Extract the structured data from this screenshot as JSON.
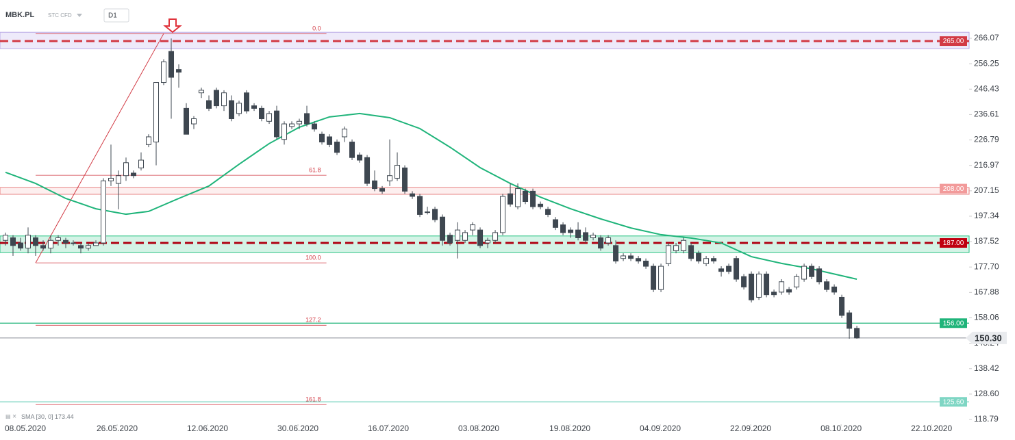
{
  "header": {
    "symbol": "MBK.PL",
    "market": "STC CFD",
    "interval": "D1"
  },
  "chart_data": {
    "type": "candlestick",
    "ylim": [
      116.94,
      269.24
    ],
    "yticks": [
      266.07,
      256.25,
      246.43,
      236.61,
      226.79,
      216.97,
      207.15,
      197.34,
      187.52,
      {
        "value": 177.7,
        "label": "177.70"
      },
      167.88,
      158.06,
      148.24,
      138.42,
      {
        "value": 128.6,
        "label": "128.60"
      },
      118.79
    ],
    "xlim": [
      -0.727,
      127.9
    ],
    "xticks": [
      {
        "value": 2.64,
        "label": "08.05.2020"
      },
      {
        "value": 14.82,
        "label": "26.05.2020"
      },
      {
        "value": 26.82,
        "label": "12.06.2020"
      },
      {
        "value": 38.82,
        "label": "30.06.2020"
      },
      {
        "value": 50.82,
        "label": "16.07.2020"
      },
      {
        "value": 62.82,
        "label": "03.08.2020"
      },
      {
        "value": 74.91,
        "label": "19.08.2020"
      },
      {
        "value": 86.91,
        "label": "04.09.2020"
      },
      {
        "value": 98.91,
        "label": "22.09.2020"
      },
      {
        "value": 110.91,
        "label": "08.10.2020"
      },
      {
        "value": 122.91,
        "label": "22.10.2020"
      }
    ],
    "up_color": "#ffffff",
    "down_color": "#3e4750",
    "wick_color": "#3e4750",
    "open": [
      188,
      189,
      187,
      185,
      189,
      186,
      185,
      188,
      188,
      187,
      186,
      185,
      186,
      187,
      211,
      210,
      213,
      214,
      216,
      225,
      226,
      249,
      261,
      254,
      239,
      233,
      245,
      242,
      246,
      240,
      242,
      237,
      245,
      240,
      239,
      234,
      238,
      227,
      232,
      233,
      237,
      233,
      229,
      228,
      226,
      228,
      226,
      221,
      220,
      211,
      208,
      211,
      212,
      216,
      206,
      205,
      199,
      200,
      197,
      190,
      188,
      188,
      192,
      192,
      187,
      188,
      191,
      206,
      201,
      207,
      207,
      202,
      200,
      196,
      194,
      192,
      192,
      191,
      189,
      189,
      187,
      186,
      181,
      182,
      181,
      180,
      178,
      169,
      179,
      184,
      184,
      186,
      183,
      179,
      181,
      177,
      178,
      181,
      174,
      175,
      166,
      175,
      168,
      168,
      169,
      170,
      173,
      178,
      177,
      172,
      170,
      166,
      160,
      154
    ],
    "high": [
      191,
      190,
      189,
      193,
      190,
      188,
      190,
      190,
      189,
      188,
      187,
      187,
      188,
      212,
      225,
      215,
      220,
      215,
      222,
      229,
      249,
      258,
      266,
      256,
      241,
      236,
      247,
      244,
      247,
      246,
      244,
      242,
      246,
      241,
      240,
      238,
      240,
      234,
      234,
      235,
      240,
      234,
      230,
      229,
      227,
      232,
      227,
      222,
      221,
      215,
      209,
      227,
      222,
      217,
      207,
      206,
      201,
      201,
      198,
      191,
      195,
      192,
      195,
      193,
      189,
      192,
      206,
      210,
      210,
      208,
      208,
      203,
      201,
      197,
      195,
      193,
      195,
      193,
      191,
      190,
      190,
      188,
      183,
      183,
      182,
      181,
      179,
      179,
      187,
      187,
      189,
      187,
      184,
      182,
      182,
      178,
      179,
      182,
      175,
      176,
      176,
      176,
      169,
      173,
      170,
      175,
      179,
      179,
      178,
      173,
      171,
      167,
      161,
      155
    ],
    "low": [
      186,
      182,
      184,
      183,
      182,
      184,
      183,
      186,
      185,
      186,
      183,
      184,
      186,
      186,
      209,
      200,
      211,
      212,
      215,
      224,
      217,
      248,
      235,
      247,
      229,
      231,
      243,
      238,
      239,
      238,
      234,
      236,
      237,
      238,
      234,
      233,
      227,
      225,
      231,
      231,
      232,
      230,
      225,
      224,
      221,
      226,
      219,
      218,
      209,
      207,
      206,
      209,
      211,
      206,
      204,
      197,
      198,
      195,
      186,
      186,
      181,
      187,
      190,
      185,
      185,
      187,
      190,
      201,
      200,
      202,
      200,
      200,
      197,
      192,
      190,
      189,
      188,
      187,
      188,
      184,
      186,
      179,
      180,
      180,
      179,
      177,
      168,
      168,
      178,
      183,
      183,
      180,
      179,
      178,
      179,
      174,
      175,
      172,
      169,
      164,
      165,
      166,
      166,
      167,
      167,
      169,
      172,
      173,
      171,
      168,
      167,
      158,
      150,
      150
    ],
    "close": [
      190,
      186,
      185,
      190,
      186,
      185,
      188,
      189,
      187,
      187,
      185,
      186,
      187,
      211,
      212,
      213,
      218,
      213,
      219,
      228,
      249,
      257,
      251,
      253,
      229,
      235,
      246,
      239,
      240,
      245,
      235,
      241,
      238,
      239,
      235,
      237,
      228,
      233,
      233,
      234,
      233,
      231,
      226,
      225,
      222,
      231,
      220,
      219,
      210,
      208,
      207,
      213,
      217,
      207,
      205,
      198,
      199,
      196,
      188,
      187,
      192,
      191,
      194,
      186,
      188,
      191,
      205,
      202,
      208,
      203,
      201,
      201,
      198,
      193,
      191,
      191,
      189,
      188,
      190,
      185,
      189,
      180,
      182,
      181,
      180,
      178,
      169,
      178,
      186,
      186,
      188,
      181,
      180,
      181,
      180,
      176,
      176,
      173,
      170,
      165,
      175,
      167,
      167,
      172,
      168,
      174,
      178,
      174,
      172,
      169,
      168,
      159,
      154,
      150.3
    ],
    "sma": {
      "legend": "SMA [30, 0]",
      "last": 173.44,
      "color": "#1fb47a",
      "x": [
        0,
        4,
        8,
        12,
        16,
        19,
        23,
        27,
        31,
        35,
        39,
        43,
        47,
        51,
        55,
        59,
        63,
        67,
        71,
        75,
        79,
        83,
        87,
        91,
        95,
        99,
        103,
        107,
        113
      ],
      "values": [
        214.3,
        210.0,
        204.2,
        200.2,
        198.1,
        199.2,
        204.2,
        209.0,
        217.4,
        225.4,
        231.7,
        235.7,
        237.0,
        235.4,
        231.2,
        224.0,
        216.1,
        210.0,
        204.7,
        200.2,
        196.3,
        192.8,
        190.2,
        188.9,
        187.0,
        181.7,
        179.1,
        177.0,
        173.0
      ]
    },
    "zones": [
      {
        "from": 262.1,
        "to": 268.4,
        "fill": "rgba(150,125,225,0.16)",
        "stroke": "#b9a9e6"
      },
      {
        "from": 205.8,
        "to": 208.4,
        "fill": "rgba(240,120,120,0.12)",
        "stroke": "#e77c7c"
      },
      {
        "from": 183.3,
        "to": 189.7,
        "fill": "rgba(38,194,129,0.2)",
        "stroke": "#26c281"
      }
    ],
    "levels": [
      {
        "value": 265,
        "label": "265.00",
        "color": "#d23a44",
        "label_bg": "#d23a44",
        "dashed": true
      },
      {
        "value": 208,
        "label": "208.00",
        "color": "none",
        "label_bg": "#f29a9a",
        "dashed": false
      },
      {
        "value": 187,
        "label": "187.00",
        "color": "#b00012",
        "label_bg": "#c0000f",
        "dashed": true
      },
      {
        "value": 156,
        "label": "156.00",
        "color": "#1fb47a",
        "label_bg": "#1fb47a",
        "dashed": false
      },
      {
        "value": 125.6,
        "label": "125.60",
        "color": "#6fd0bb",
        "label_bg": "#7fd6c4",
        "dashed": false
      }
    ],
    "price": {
      "value": 150.3,
      "label": "150.30"
    },
    "fibonacci": {
      "high": 267.9,
      "low": 179.3,
      "x": [
        4,
        42.6
      ],
      "color": "#d23a44",
      "levels": [
        {
          "value": 0,
          "label": "0.0"
        },
        61.8,
        {
          "value": 100,
          "label": "100.0"
        },
        127.2,
        161.8
      ]
    }
  }
}
